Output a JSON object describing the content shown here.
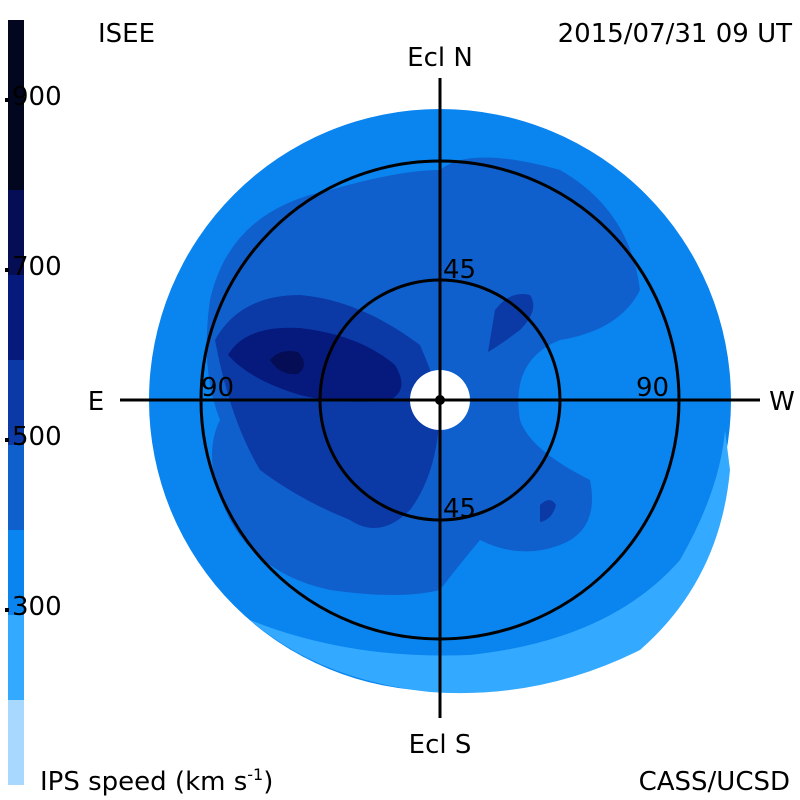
{
  "header": {
    "org_label": "ISEE",
    "timestamp": "2015/07/31 09 UT"
  },
  "footer": {
    "colorbar_title_main": "IPS speed (km s",
    "colorbar_title_exp": "-1",
    "colorbar_title_close": ")",
    "credit": "CASS/UCSD"
  },
  "colorbar": {
    "levels": [
      {
        "color": "#a9d8ff"
      },
      {
        "color": "#33aaff"
      },
      {
        "color": "#0a84ee"
      },
      {
        "color": "#0f60cd"
      },
      {
        "color": "#0b3aa6"
      },
      {
        "color": "#061a7e"
      },
      {
        "color": "#050e54"
      },
      {
        "color": "#03061f"
      }
    ],
    "tick_labels": [
      "900",
      "700",
      "500",
      "300"
    ]
  },
  "skymap": {
    "axis_labels": {
      "north": "Ecl N",
      "south": "Ecl S",
      "east": "E",
      "west": "W"
    },
    "elongation_labels": {
      "north_45": "45",
      "south_45": "45",
      "east_90": "90",
      "west_90": "90"
    },
    "colors": {
      "outer_ring": "#0a84ee",
      "outer_light": "#33aaff",
      "mid": "#0f60cd",
      "dark": "#0b3aa6",
      "darker": "#061a7e",
      "darkest": "#050e54",
      "sun_disk": "#ffffff"
    }
  }
}
